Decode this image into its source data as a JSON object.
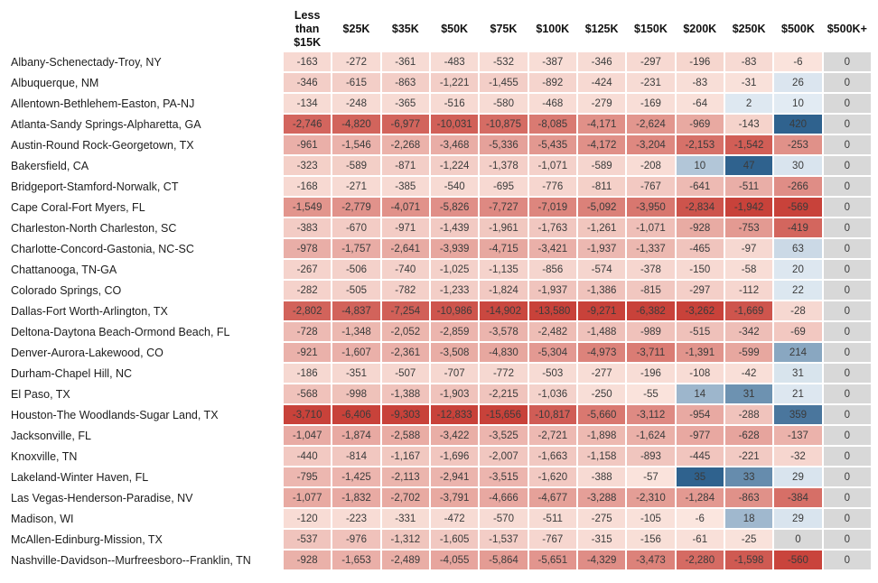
{
  "chart_data": {
    "type": "heatmap",
    "title": "",
    "columns": [
      "Less than $15K",
      "$25K",
      "$35K",
      "$50K",
      "$75K",
      "$100K",
      "$125K",
      "$150K",
      "$200K",
      "$250K",
      "$500K",
      "$500K+"
    ],
    "rows": [
      {
        "label": "Albany-Schenectady-Troy, NY",
        "values": [
          -163,
          -272,
          -361,
          -483,
          -532,
          -387,
          -346,
          -297,
          -196,
          -83,
          -6,
          0
        ]
      },
      {
        "label": "Albuquerque, NM",
        "values": [
          -346,
          -615,
          -863,
          -1221,
          -1455,
          -892,
          -424,
          -231,
          -83,
          -31,
          26,
          0
        ]
      },
      {
        "label": "Allentown-Bethlehem-Easton, PA-NJ",
        "values": [
          -134,
          -248,
          -365,
          -516,
          -580,
          -468,
          -279,
          -169,
          -64,
          2,
          10,
          0
        ]
      },
      {
        "label": "Atlanta-Sandy Springs-Alpharetta, GA",
        "values": [
          -2746,
          -4820,
          -6977,
          -10031,
          -10875,
          -8085,
          -4171,
          -2624,
          -969,
          -143,
          420,
          0
        ]
      },
      {
        "label": "Austin-Round Rock-Georgetown, TX",
        "values": [
          -961,
          -1546,
          -2268,
          -3468,
          -5336,
          -5435,
          -4172,
          -3204,
          -2153,
          -1542,
          -253,
          0
        ]
      },
      {
        "label": "Bakersfield, CA",
        "values": [
          -323,
          -589,
          -871,
          -1224,
          -1378,
          -1071,
          -589,
          -208,
          10,
          47,
          30,
          0
        ]
      },
      {
        "label": "Bridgeport-Stamford-Norwalk, CT",
        "values": [
          -168,
          -271,
          -385,
          -540,
          -695,
          -776,
          -811,
          -767,
          -641,
          -511,
          -266,
          0
        ]
      },
      {
        "label": "Cape Coral-Fort Myers, FL",
        "values": [
          -1549,
          -2779,
          -4071,
          -5826,
          -7727,
          -7019,
          -5092,
          -3950,
          -2834,
          -1942,
          -569,
          0
        ]
      },
      {
        "label": "Charleston-North Charleston, SC",
        "values": [
          -383,
          -670,
          -971,
          -1439,
          -1961,
          -1763,
          -1261,
          -1071,
          -928,
          -753,
          -419,
          0
        ]
      },
      {
        "label": "Charlotte-Concord-Gastonia, NC-SC",
        "values": [
          -978,
          -1757,
          -2641,
          -3939,
          -4715,
          -3421,
          -1937,
          -1337,
          -465,
          -97,
          63,
          0
        ]
      },
      {
        "label": "Chattanooga, TN-GA",
        "values": [
          -267,
          -506,
          -740,
          -1025,
          -1135,
          -856,
          -574,
          -378,
          -150,
          -58,
          20,
          0
        ]
      },
      {
        "label": "Colorado Springs, CO",
        "values": [
          -282,
          -505,
          -782,
          -1233,
          -1824,
          -1937,
          -1386,
          -815,
          -297,
          -112,
          22,
          0
        ]
      },
      {
        "label": "Dallas-Fort Worth-Arlington, TX",
        "values": [
          -2802,
          -4837,
          -7254,
          -10986,
          -14902,
          -13580,
          -9271,
          -6382,
          -3262,
          -1669,
          -28,
          0
        ]
      },
      {
        "label": "Deltona-Daytona Beach-Ormond Beach, FL",
        "values": [
          -728,
          -1348,
          -2052,
          -2859,
          -3578,
          -2482,
          -1488,
          -989,
          -515,
          -342,
          -69,
          0
        ]
      },
      {
        "label": "Denver-Aurora-Lakewood, CO",
        "values": [
          -921,
          -1607,
          -2361,
          -3508,
          -4830,
          -5304,
          -4973,
          -3711,
          -1391,
          -599,
          214,
          0
        ]
      },
      {
        "label": "Durham-Chapel Hill, NC",
        "values": [
          -186,
          -351,
          -507,
          -707,
          -772,
          -503,
          -277,
          -196,
          -108,
          -42,
          31,
          0
        ]
      },
      {
        "label": "El Paso, TX",
        "values": [
          -568,
          -998,
          -1388,
          -1903,
          -2215,
          -1036,
          -250,
          -55,
          14,
          31,
          21,
          0
        ]
      },
      {
        "label": "Houston-The Woodlands-Sugar Land, TX",
        "values": [
          -3710,
          -6406,
          -9303,
          -12833,
          -15656,
          -10817,
          -5660,
          -3112,
          -954,
          -288,
          359,
          0
        ]
      },
      {
        "label": "Jacksonville, FL",
        "values": [
          -1047,
          -1874,
          -2588,
          -3422,
          -3525,
          -2721,
          -1898,
          -1624,
          -977,
          -628,
          -137,
          0
        ]
      },
      {
        "label": "Knoxville, TN",
        "values": [
          -440,
          -814,
          -1167,
          -1696,
          -2007,
          -1663,
          -1158,
          -893,
          -445,
          -221,
          -32,
          0
        ]
      },
      {
        "label": "Lakeland-Winter Haven, FL",
        "values": [
          -795,
          -1425,
          -2113,
          -2941,
          -3515,
          -1620,
          -388,
          -57,
          35,
          33,
          29,
          0
        ]
      },
      {
        "label": "Las Vegas-Henderson-Paradise, NV",
        "values": [
          -1077,
          -1832,
          -2702,
          -3791,
          -4666,
          -4677,
          -3288,
          -2310,
          -1284,
          -863,
          -384,
          0
        ]
      },
      {
        "label": "Madison, WI",
        "values": [
          -120,
          -223,
          -331,
          -472,
          -570,
          -511,
          -275,
          -105,
          -6,
          18,
          29,
          0
        ]
      },
      {
        "label": "McAllen-Edinburg-Mission, TX",
        "values": [
          -537,
          -976,
          -1312,
          -1605,
          -1537,
          -767,
          -315,
          -156,
          -61,
          -25,
          0,
          0
        ]
      },
      {
        "label": "Nashville-Davidson--Murfreesboro--Franklin, TN",
        "values": [
          -928,
          -1653,
          -2489,
          -4055,
          -5864,
          -5651,
          -4329,
          -3473,
          -2280,
          -1598,
          -560,
          0
        ]
      }
    ],
    "layout_hints": {
      "color_scaling": "per-column diverging, negative=red, positive=blue, zero=gray",
      "legend_position": "none",
      "grid": "white gaps between cells"
    },
    "colors": {
      "negative_low": "#fbe7e0",
      "negative_high": "#c8423a",
      "positive_low": "#e6eef5",
      "positive_high": "#2f628e",
      "zero": "#d8d8d8",
      "cell_text": "#3b3b3b"
    }
  }
}
